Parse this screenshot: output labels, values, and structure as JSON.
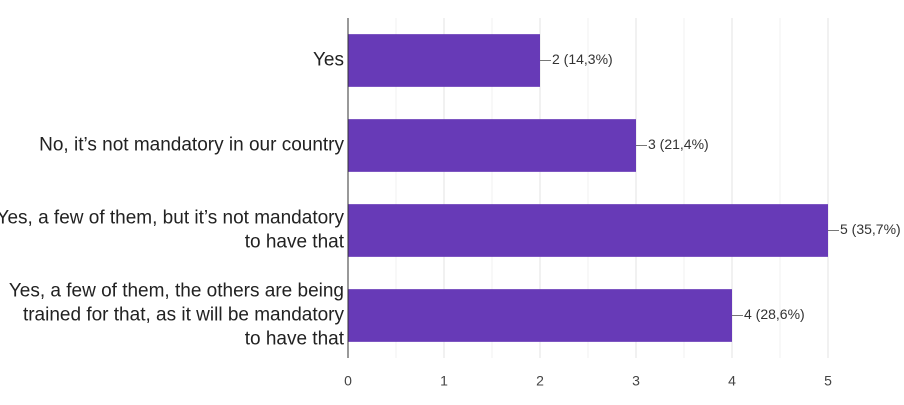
{
  "chart_data": {
    "type": "bar",
    "orientation": "horizontal",
    "categories": [
      [
        "Yes"
      ],
      [
        "No, it’s not mandatory in our country"
      ],
      [
        "Yes, a few of them, but it’s not mandatory",
        "to have that"
      ],
      [
        "Yes, a few of them, the others are being",
        "trained for that, as it will be mandatory",
        "to have that"
      ]
    ],
    "values": [
      2,
      3,
      5,
      4
    ],
    "data_labels": [
      "2 (14,3%)",
      "3 (21,4%)",
      "5 (35,7%)",
      "4 (28,6%)"
    ],
    "xlim": [
      0,
      5
    ],
    "xticks": [
      0,
      1,
      2,
      3,
      4,
      5
    ],
    "xtick_labels": [
      "0",
      "1",
      "2",
      "3",
      "4",
      "5"
    ],
    "grid": true,
    "bar_color": "#673ab7",
    "title": "",
    "xlabel": "",
    "ylabel": ""
  }
}
